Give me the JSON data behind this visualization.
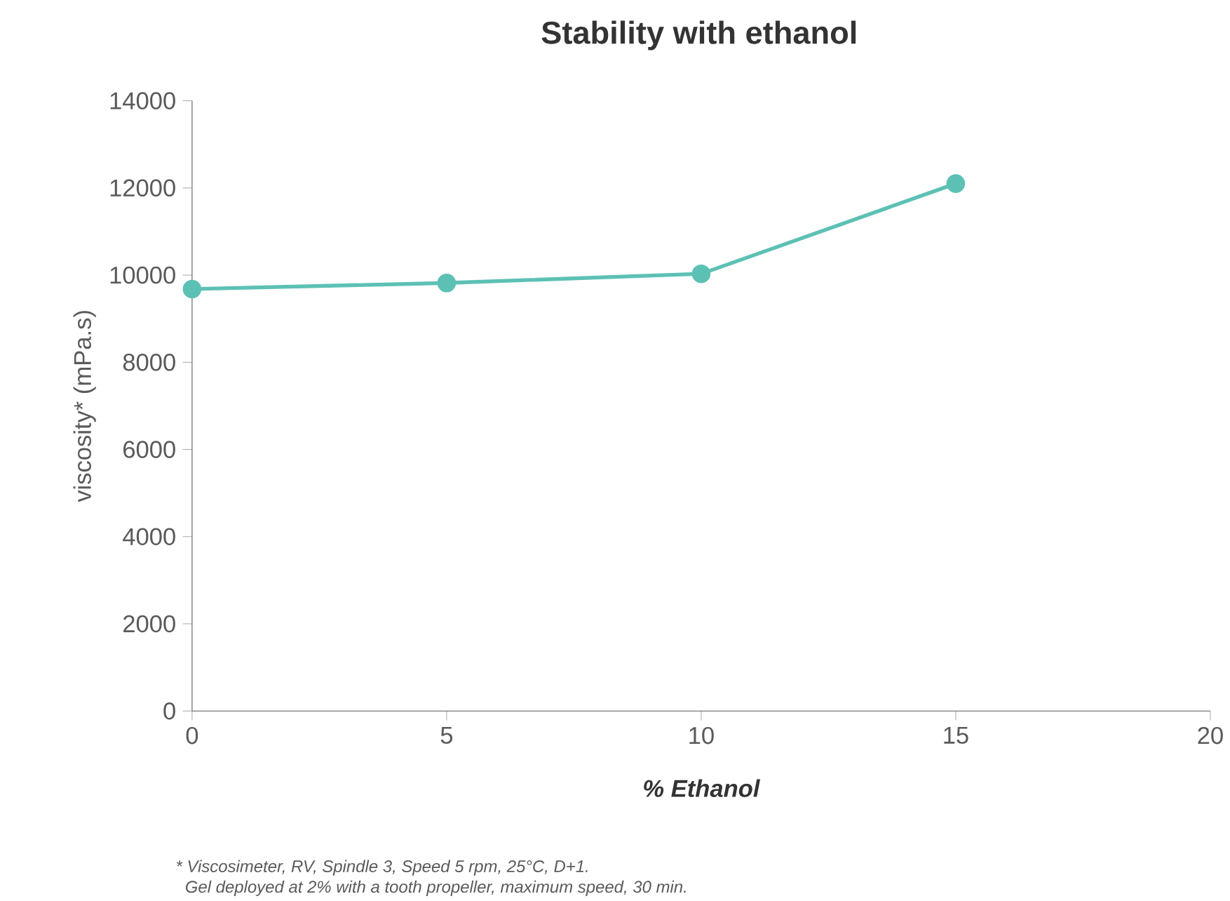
{
  "chart_data": {
    "type": "line",
    "title": "Stability with ethanol",
    "xlabel": "% Ethanol",
    "ylabel": "viscosity* (mPa.s)",
    "x": [
      0,
      5,
      10,
      15
    ],
    "series": [
      {
        "color": "#5cc1b4",
        "values": [
          9680,
          9820,
          10030,
          12100
        ]
      }
    ],
    "xlim": [
      0,
      20
    ],
    "xticks": [
      0,
      5,
      10,
      15,
      20
    ],
    "ylim": [
      0,
      14000
    ],
    "yticks": [
      0,
      2000,
      4000,
      6000,
      8000,
      10000,
      12000,
      14000
    ],
    "marker": "circle",
    "line_style": "solid",
    "grid": false,
    "annotations": [
      "* Viscosimeter, RV, Spindle 3, Speed 5 rpm, 25°C, D+1.",
      "Gel deployed at 2% with a tooth propeller, maximum speed, 30 min."
    ]
  }
}
